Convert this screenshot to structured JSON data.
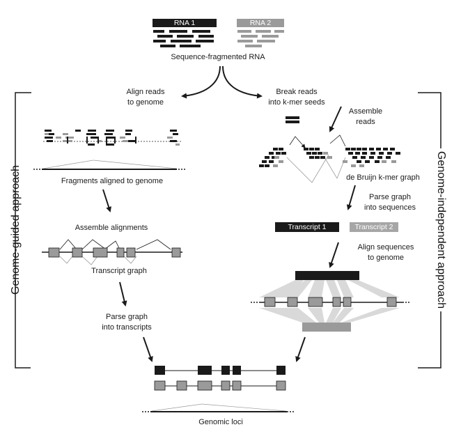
{
  "top": {
    "rna1": "RNA 1",
    "rna2": "RNA 2",
    "caption": "Sequence-fragmented RNA"
  },
  "guided": {
    "side_label": "Genome-guided approach",
    "align_label": [
      "Align reads",
      "to genome"
    ],
    "fragments_label": "Fragments aligned to genome",
    "assemble_label": "Assemble alignments",
    "graph_label": "Transcript graph",
    "parse_label": [
      "Parse graph",
      "into transcripts"
    ]
  },
  "independent": {
    "side_label": "Genome-independent approach",
    "break_label": [
      "Break reads",
      "into k-mer seeds"
    ],
    "assemble_label": [
      "Assemble",
      "reads"
    ],
    "graph_label": "de Bruijn k-mer graph",
    "parse_label": [
      "Parse graph",
      "into sequences"
    ],
    "transcript1": "Transcript 1",
    "transcript2": "Transcript 2",
    "align_label": [
      "Align sequences",
      "to genome"
    ]
  },
  "bottom": {
    "caption": "Genomic loci"
  },
  "colors": {
    "dark": "#1a1a1a",
    "gray": "#9a9a9a",
    "light_gray": "#d9d9d9",
    "transcript2_bg": "#a6a6a6"
  }
}
